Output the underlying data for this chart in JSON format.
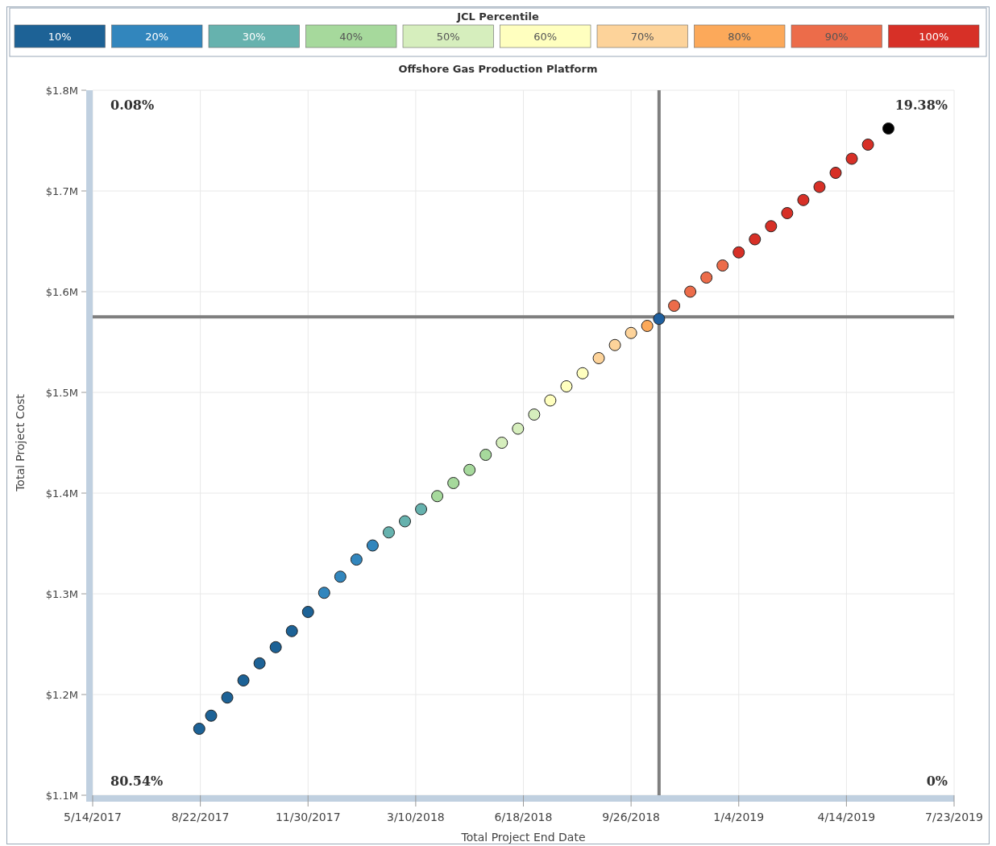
{
  "chart_data": {
    "type": "scatter",
    "title": "Offshore Gas Production Platform",
    "xlabel": "Total Project End Date",
    "ylabel": "Total Project Cost",
    "legend_title": "JCL Percentile",
    "legend": "top",
    "grid": true,
    "marker": "circle",
    "xlim": [
      "2017-05-14",
      "2019-07-23"
    ],
    "xticks": [
      {
        "value": "2017-05-14",
        "label": "5/14/2017"
      },
      {
        "value": "2017-08-22",
        "label": "8/22/2017"
      },
      {
        "value": "2017-11-30",
        "label": "11/30/2017"
      },
      {
        "value": "2018-03-10",
        "label": "3/10/2018"
      },
      {
        "value": "2018-06-18",
        "label": "6/18/2018"
      },
      {
        "value": "2018-09-26",
        "label": "9/26/2018"
      },
      {
        "value": "2019-01-04",
        "label": "1/4/2019"
      },
      {
        "value": "2019-04-14",
        "label": "4/14/2019"
      },
      {
        "value": "2019-07-23",
        "label": "7/23/2019"
      }
    ],
    "ylim": [
      1.1,
      1.8
    ],
    "yticks": [
      {
        "value": 1.1,
        "label": "$1.1M"
      },
      {
        "value": 1.2,
        "label": "$1.2M"
      },
      {
        "value": 1.3,
        "label": "$1.3M"
      },
      {
        "value": 1.4,
        "label": "$1.4M"
      },
      {
        "value": 1.5,
        "label": "$1.5M"
      },
      {
        "value": 1.6,
        "label": "$1.6M"
      },
      {
        "value": 1.7,
        "label": "$1.7M"
      },
      {
        "value": 1.8,
        "label": "$1.8M"
      }
    ],
    "ref_lines": [
      {
        "axis": "x",
        "value": "2018-10-22",
        "color": "#7f7f7f"
      },
      {
        "axis": "y",
        "value": 1.575,
        "color": "#7f7f7f"
      }
    ],
    "annotations": [
      "0.08%",
      "19.38%",
      "80.54%",
      "0%"
    ],
    "series": [
      {
        "name": "10%",
        "color": "#1d6296",
        "x": [
          "2017-08-21",
          "2017-09-01",
          "2017-09-16",
          "2017-10-01",
          "2017-10-16",
          "2017-10-31",
          "2017-11-15",
          "2017-11-30"
        ],
        "values": [
          1.166,
          1.179,
          1.197,
          1.214,
          1.231,
          1.247,
          1.263,
          1.282
        ]
      },
      {
        "name": "20%",
        "color": "#3286bd",
        "x": [
          "2017-12-15",
          "2017-12-30",
          "2018-01-14",
          "2018-01-29"
        ],
        "values": [
          1.301,
          1.317,
          1.334,
          1.348
        ]
      },
      {
        "name": "30%",
        "color": "#66b2ae",
        "x": [
          "2018-02-13",
          "2018-02-28",
          "2018-03-15"
        ],
        "values": [
          1.361,
          1.372,
          1.384
        ]
      },
      {
        "name": "40%",
        "color": "#a6d99c",
        "x": [
          "2018-03-30",
          "2018-04-14",
          "2018-04-29",
          "2018-05-14"
        ],
        "values": [
          1.397,
          1.41,
          1.423,
          1.438
        ]
      },
      {
        "name": "50%",
        "color": "#d6eebd",
        "x": [
          "2018-05-29",
          "2018-06-13",
          "2018-06-28"
        ],
        "values": [
          1.45,
          1.464,
          1.478
        ]
      },
      {
        "name": "60%",
        "color": "#ffffbf",
        "x": [
          "2018-07-13",
          "2018-07-28",
          "2018-08-12"
        ],
        "values": [
          1.492,
          1.506,
          1.519
        ]
      },
      {
        "name": "70%",
        "color": "#fdd39a",
        "x": [
          "2018-08-27",
          "2018-09-11",
          "2018-09-26"
        ],
        "values": [
          1.534,
          1.547,
          1.559
        ]
      },
      {
        "name": "80%",
        "color": "#fca95a",
        "x": [
          "2018-10-11"
        ],
        "values": [
          1.566
        ]
      },
      {
        "name": "90%",
        "color": "#ec6c4a",
        "x": [
          "2018-11-05",
          "2018-11-20",
          "2018-12-05",
          "2018-12-20"
        ],
        "values": [
          1.586,
          1.6,
          1.614,
          1.626
        ]
      },
      {
        "name": "100%",
        "color": "#d73027",
        "x": [
          "2019-01-04",
          "2019-01-19",
          "2019-02-03",
          "2019-02-18",
          "2019-03-05",
          "2019-03-20",
          "2019-04-04",
          "2019-04-19",
          "2019-05-04"
        ],
        "values": [
          1.639,
          1.652,
          1.665,
          1.678,
          1.691,
          1.704,
          1.718,
          1.732,
          1.746
        ]
      },
      {
        "color": "#1f5f9e",
        "x": [
          "2018-10-22"
        ],
        "values": [
          1.573
        ]
      },
      {
        "color": "#000000",
        "x": [
          "2019-05-23"
        ],
        "values": [
          1.762
        ]
      }
    ]
  }
}
